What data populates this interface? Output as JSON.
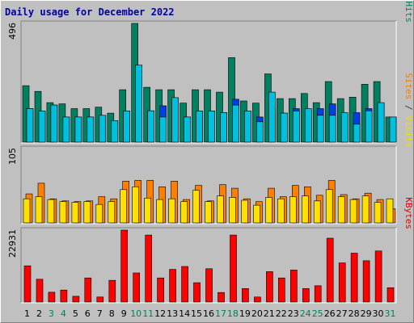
{
  "chart_data": {
    "type": "bar",
    "title": "Daily usage for December 2022",
    "categories": [
      "1",
      "2",
      "3",
      "4",
      "5",
      "6",
      "7",
      "8",
      "9",
      "10",
      "11",
      "12",
      "13",
      "14",
      "15",
      "16",
      "17",
      "18",
      "19",
      "20",
      "21",
      "22",
      "23",
      "24",
      "25",
      "26",
      "27",
      "28",
      "29",
      "30",
      "31"
    ],
    "weekend_days": [
      "3",
      "4",
      "10",
      "11",
      "17",
      "18",
      "24",
      "25",
      "31"
    ],
    "panels": [
      {
        "id": "hits",
        "max_label": "496",
        "ylim": [
          0,
          496
        ],
        "legend": [
          {
            "text": "Pages",
            "color": "#00c0e0"
          },
          {
            "text": " / ",
            "color": "#404040"
          },
          {
            "text": "Files",
            "color": "#0040e0"
          },
          {
            "text": " / ",
            "color": "#404040"
          },
          {
            "text": "Hits",
            "color": "#008060"
          }
        ],
        "series": [
          {
            "name": "Hits",
            "color": "#008060",
            "values": [
              236,
              212,
              165,
              160,
              140,
              140,
              146,
              121,
              219,
              496,
              229,
              219,
              219,
              163,
              219,
              219,
              209,
              353,
              172,
              163,
              285,
              182,
              182,
              203,
              165,
              253,
              182,
              188,
              242,
              253,
              105
            ]
          },
          {
            "name": "Files",
            "color": "#0040e0",
            "values": [
              140,
              130,
              155,
              105,
              105,
              105,
              112,
              90,
              130,
              215,
              131,
              152,
              179,
              105,
              130,
              130,
              123,
              179,
              130,
              105,
              140,
              121,
              140,
              112,
              140,
              160,
              105,
              123,
              140,
              160,
              105
            ]
          },
          {
            "name": "Pages",
            "color": "#00c0e0",
            "values": [
              140,
              130,
              155,
              105,
              105,
              105,
              112,
              90,
              130,
              322,
              131,
              105,
              186,
              105,
              130,
              130,
              123,
              155,
              130,
              85,
              209,
              121,
              130,
              140,
              112,
              112,
              123,
              75,
              131,
              165,
              105
            ]
          }
        ]
      },
      {
        "id": "visits",
        "max_label": "105",
        "ylim": [
          0,
          105
        ],
        "legend": [
          {
            "text": "Sites",
            "color": "#f08000"
          },
          {
            "text": " / ",
            "color": "#404040"
          },
          {
            "text": "Visits",
            "color": "#f0e000"
          }
        ],
        "series": [
          {
            "name": "Visits",
            "color": "#ff8000",
            "values": [
              41,
              56,
              34,
              31,
              30,
              31,
              37,
              34,
              59,
              60,
              60,
              51,
              59,
              33,
              53,
              31,
              54,
              49,
              34,
              30,
              49,
              37,
              53,
              51,
              39,
              60,
              40,
              34,
              42,
              33,
              20
            ]
          },
          {
            "name": "Sites",
            "color": "#ffe000",
            "values": [
              34,
              37,
              33,
              30,
              29,
              30,
              26,
              30,
              47,
              51,
              35,
              33,
              34,
              30,
              46,
              30,
              38,
              36,
              32,
              25,
              36,
              34,
              37,
              38,
              31,
              47,
              37,
              33,
              38,
              29,
              34
            ]
          }
        ]
      },
      {
        "id": "kbytes",
        "max_label": "22931",
        "ylim": [
          0,
          22931
        ],
        "legend": [
          {
            "text": "KBytes",
            "color": "#e00000"
          }
        ],
        "series": [
          {
            "name": "KBytes",
            "color": "#ff0000",
            "values": [
              11540,
              7270,
              3120,
              3820,
              1820,
              7690,
              1610,
              6900,
              22931,
              9280,
              21350,
              7680,
              10400,
              11330,
              6170,
              10610,
              3050,
              21350,
              4300,
              1610,
              9700,
              7690,
              10210,
              4300,
              5170,
              20360,
              12480,
              15580,
              13160,
              16280,
              4570
            ]
          }
        ]
      }
    ]
  }
}
